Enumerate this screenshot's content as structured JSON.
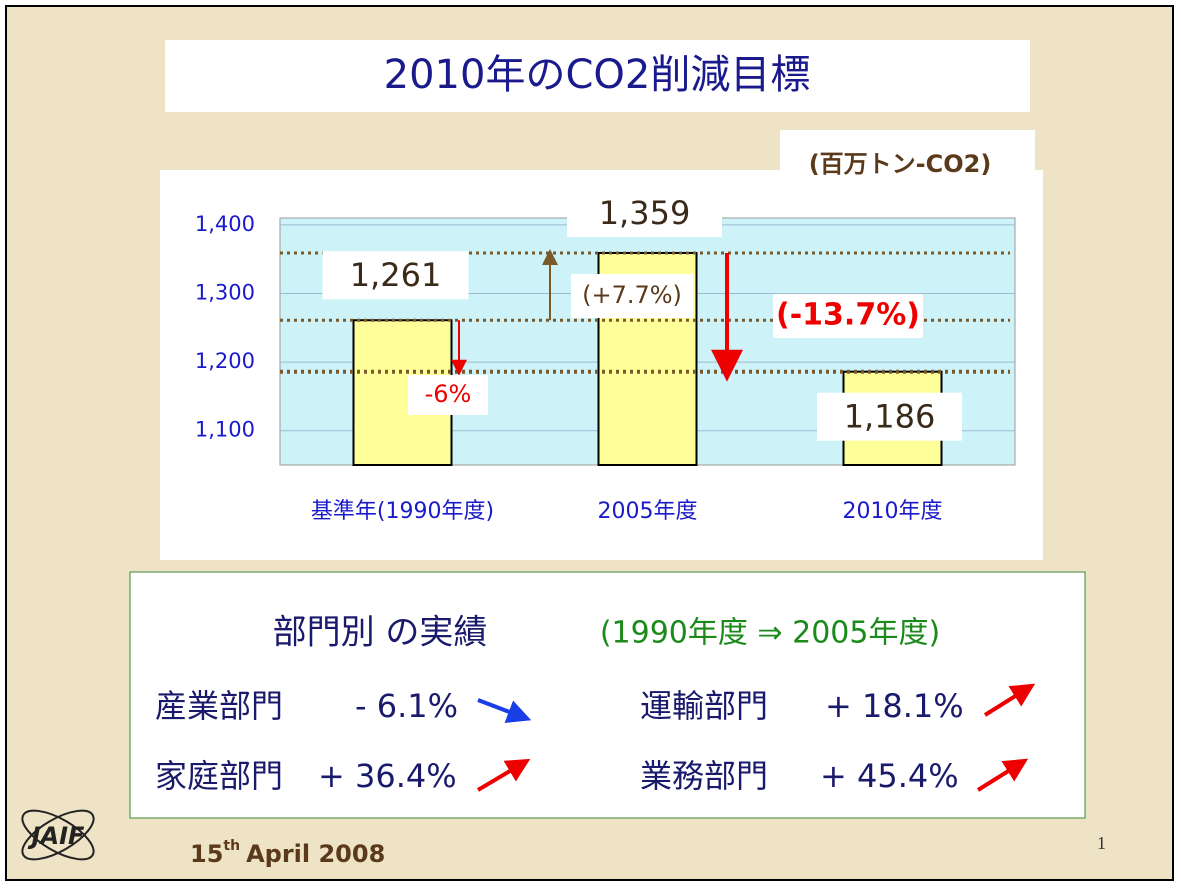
{
  "slide_title": "2010年のCO2削減目標",
  "chart_data": {
    "type": "bar",
    "unit": "(百万トン-CO2)",
    "categories": [
      "基準年(1990年度)",
      "2005年度",
      "2010年度"
    ],
    "values": [
      1261,
      1359,
      1186
    ],
    "value_labels": [
      "1,261",
      "1,359",
      "1,186"
    ],
    "color": "#ffff99",
    "ylim": [
      1050,
      1410
    ],
    "yticks": [
      {
        "value": 1100,
        "label": "1,100"
      },
      {
        "value": 1200,
        "label": "1,200"
      },
      {
        "value": 1300,
        "label": "1,300"
      },
      {
        "value": 1400,
        "label": "1,400"
      }
    ],
    "grid": true,
    "annotations": [
      "-6%",
      "(+7.7%)",
      "(-13.7%)"
    ]
  },
  "sectors": {
    "heading": "部門別 の実績",
    "period": "(1990年度 ⇒ 2005年度)",
    "rows": [
      {
        "name": "産業部門",
        "change": "- 6.1%"
      },
      {
        "name": "運輸部門",
        "change": "+ 18.1%"
      },
      {
        "name": "家庭部門",
        "change": "+ 36.4%"
      },
      {
        "name": "業務部門",
        "change": "+ 45.4%"
      }
    ]
  },
  "footer": {
    "day": "15",
    "suffix": "th",
    "rest": "April 2008",
    "logo": "JAIF",
    "page": "1"
  }
}
